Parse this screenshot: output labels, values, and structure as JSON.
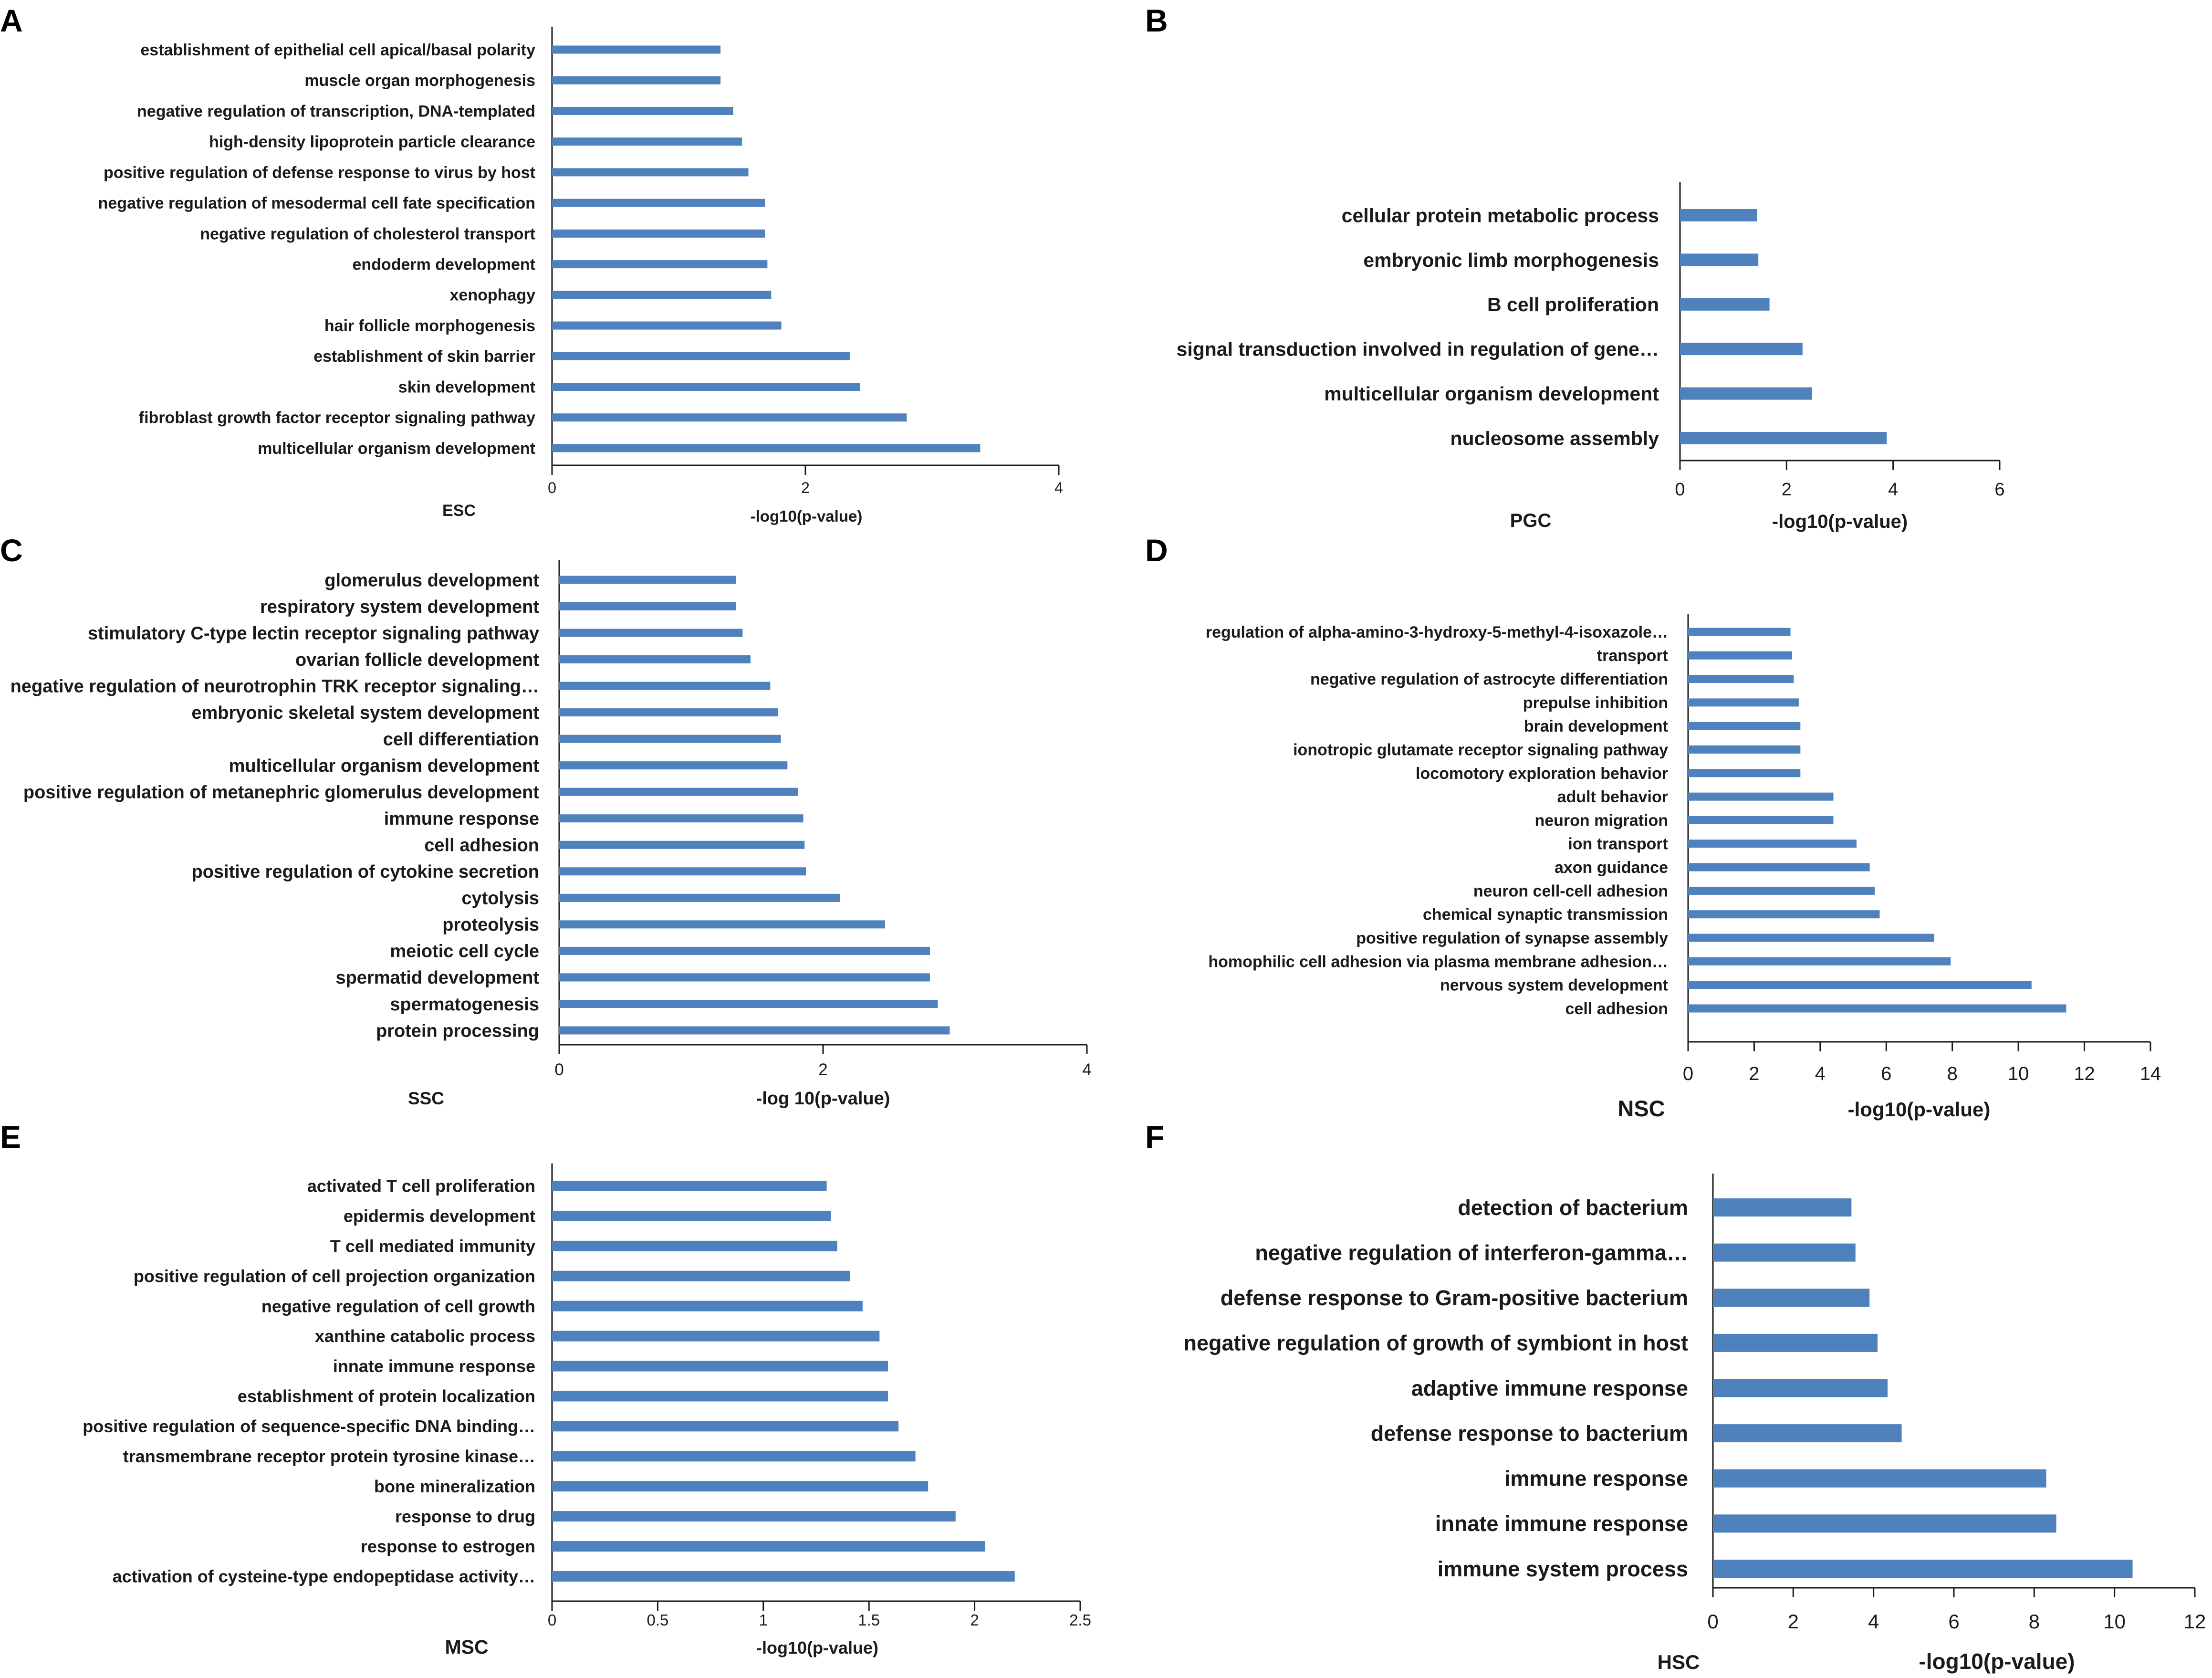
{
  "colors": {
    "bar": "#4f81bd",
    "axis": "#1a1a1a",
    "text": "#1a1a1a"
  },
  "chart_data": [
    {
      "type": "bar",
      "orientation": "horizontal",
      "panel": "A",
      "cell_type": "ESC",
      "xlabel": "-log10(p-value)",
      "xlim": [
        0,
        4
      ],
      "xticks": [
        0,
        2,
        4
      ],
      "categories": [
        "establishment of epithelial cell apical/basal polarity",
        "muscle organ morphogenesis",
        "negative regulation of transcription, DNA-templated",
        "high-density lipoprotein particle clearance",
        "positive regulation of defense response to virus by host",
        "negative regulation of mesodermal cell fate specification",
        "negative regulation of cholesterol transport",
        "endoderm development",
        "xenophagy",
        "hair follicle morphogenesis",
        "establishment of skin barrier",
        "skin development",
        "fibroblast growth factor receptor signaling pathway",
        "multicellular organism development"
      ],
      "values": [
        1.33,
        1.33,
        1.43,
        1.5,
        1.55,
        1.68,
        1.68,
        1.7,
        1.73,
        1.81,
        2.35,
        2.43,
        2.8,
        3.38
      ]
    },
    {
      "type": "bar",
      "orientation": "horizontal",
      "panel": "B",
      "cell_type": "PGC",
      "xlabel": "-log10(p-value)",
      "xlim": [
        0,
        6
      ],
      "xticks": [
        0,
        2,
        4,
        6
      ],
      "categories": [
        "cellular protein metabolic process",
        "embryonic limb morphogenesis",
        "B cell proliferation",
        "signal transduction involved in regulation of gene…",
        "multicellular organism development",
        "nucleosome assembly"
      ],
      "values": [
        1.45,
        1.47,
        1.68,
        2.3,
        2.48,
        3.88
      ]
    },
    {
      "type": "bar",
      "orientation": "horizontal",
      "panel": "C",
      "cell_type": "SSC",
      "xlabel": "-log 10(p-value)",
      "xlim": [
        0,
        4
      ],
      "xticks": [
        0,
        2,
        4
      ],
      "categories": [
        "glomerulus development",
        "respiratory system development",
        "stimulatory C-type lectin receptor signaling pathway",
        "ovarian follicle development",
        "negative regulation of neurotrophin TRK receptor signaling…",
        "embryonic skeletal system development",
        "cell differentiation",
        "multicellular organism development",
        "positive regulation of metanephric glomerulus development",
        "immune response",
        "cell adhesion",
        "positive regulation of cytokine secretion",
        "cytolysis",
        "proteolysis",
        "meiotic cell cycle",
        "spermatid development",
        "spermatogenesis",
        "protein processing"
      ],
      "values": [
        1.34,
        1.34,
        1.39,
        1.45,
        1.6,
        1.66,
        1.68,
        1.73,
        1.81,
        1.85,
        1.86,
        1.87,
        2.13,
        2.47,
        2.81,
        2.81,
        2.87,
        2.96
      ]
    },
    {
      "type": "bar",
      "orientation": "horizontal",
      "panel": "D",
      "cell_type": "NSC",
      "xlabel": "-log10(p-value)",
      "xlim": [
        0,
        14
      ],
      "xticks": [
        0,
        2,
        4,
        6,
        8,
        10,
        12,
        14
      ],
      "categories": [
        "regulation of alpha-amino-3-hydroxy-5-methyl-4-isoxazole…",
        "transport",
        "negative regulation of astrocyte differentiation",
        "prepulse inhibition",
        "brain development",
        "ionotropic glutamate receptor signaling pathway",
        "locomotory exploration behavior",
        "adult behavior",
        "neuron migration",
        "ion transport",
        "axon guidance",
        "neuron cell-cell adhesion",
        "chemical synaptic transmission",
        "positive regulation of synapse assembly",
        "homophilic cell adhesion via plasma membrane adhesion…",
        "nervous system development",
        "cell adhesion"
      ],
      "values": [
        3.1,
        3.15,
        3.2,
        3.35,
        3.4,
        3.4,
        3.4,
        4.4,
        4.4,
        5.1,
        5.5,
        5.65,
        5.8,
        7.45,
        7.95,
        10.4,
        11.45
      ]
    },
    {
      "type": "bar",
      "orientation": "horizontal",
      "panel": "E",
      "cell_type": "MSC",
      "xlabel": "-log10(p-value)",
      "xlim": [
        0,
        2.5
      ],
      "xticks": [
        0,
        0.5,
        1,
        1.5,
        2,
        2.5
      ],
      "categories": [
        "activated T cell proliferation",
        "epidermis development",
        "T cell mediated immunity",
        "positive regulation of cell projection organization",
        "negative regulation of cell growth",
        "xanthine catabolic process",
        "innate immune response",
        "establishment of protein localization",
        "positive regulation of sequence-specific DNA binding…",
        "transmembrane receptor protein tyrosine kinase…",
        "bone mineralization",
        "response to drug",
        "response to estrogen",
        "activation of cysteine-type endopeptidase activity…"
      ],
      "values": [
        1.3,
        1.32,
        1.35,
        1.41,
        1.47,
        1.55,
        1.59,
        1.59,
        1.64,
        1.72,
        1.78,
        1.91,
        2.05,
        2.19
      ]
    },
    {
      "type": "bar",
      "orientation": "horizontal",
      "panel": "F",
      "cell_type": "HSC",
      "xlabel": "-log10(p-value)",
      "xlim": [
        0,
        12
      ],
      "xticks": [
        0,
        2,
        4,
        6,
        8,
        10,
        12
      ],
      "categories": [
        "detection of bacterium",
        "negative regulation of interferon-gamma…",
        "defense response to Gram-positive bacterium",
        "negative regulation of growth of symbiont in host",
        "adaptive immune response",
        "defense response to bacterium",
        "immune response",
        "innate immune response",
        "immune system process"
      ],
      "values": [
        3.45,
        3.55,
        3.9,
        4.1,
        4.35,
        4.7,
        8.3,
        8.55,
        10.45
      ]
    }
  ]
}
